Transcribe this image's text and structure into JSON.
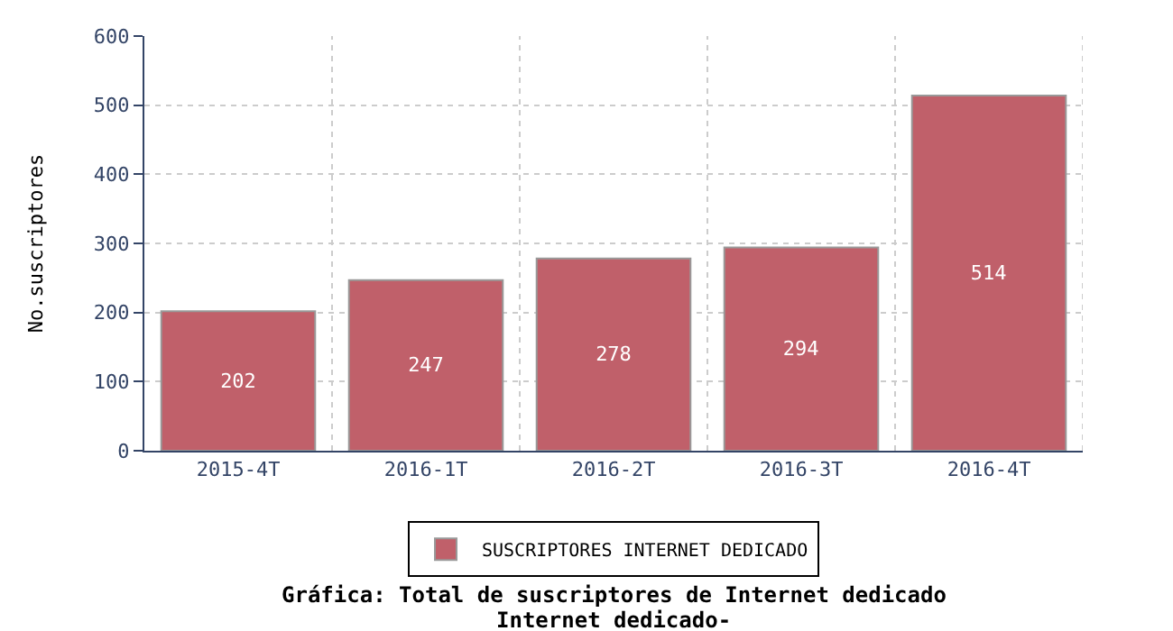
{
  "chart_data": {
    "type": "bar",
    "title": "Gráfica: Total de suscriptores de Internet dedicado",
    "subtitle": "Internet dedicado-",
    "ylabel": "No.suscriptores",
    "categories": [
      "2015-4T",
      "2016-1T",
      "2016-2T",
      "2016-3T",
      "2016-4T"
    ],
    "series": [
      {
        "name": "SUSCRIPTORES INTERNET DEDICADO",
        "color": "#c0606a",
        "values": [
          202,
          247,
          278,
          294,
          514
        ]
      }
    ],
    "ylim": [
      0,
      600
    ],
    "yticks": [
      0,
      100,
      200,
      300,
      400,
      500,
      600
    ],
    "grid": true,
    "legend": "bottom",
    "data_labels": true
  }
}
